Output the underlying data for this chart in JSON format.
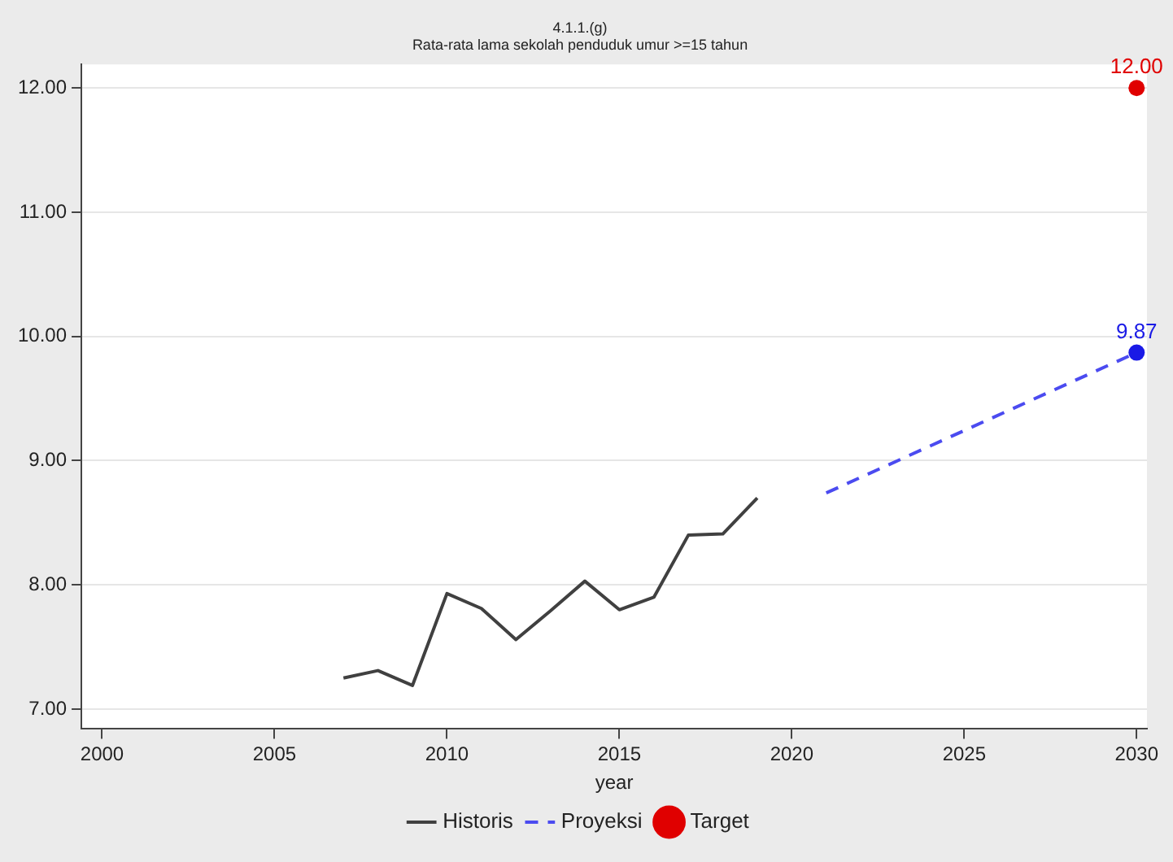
{
  "chart_data": {
    "type": "line",
    "title": "4.1.1.(g)",
    "subtitle": "Rata-rata lama sekolah penduduk umur >=15 tahun",
    "xlabel": "year",
    "xlim": [
      1999.4,
      2030.3
    ],
    "xticks": [
      2000,
      2005,
      2010,
      2015,
      2020,
      2025,
      2030
    ],
    "ylim": [
      6.84,
      12.19
    ],
    "yticks": [
      {
        "value": 7,
        "label": "7.00"
      },
      {
        "value": 8,
        "label": "8.00"
      },
      {
        "value": 9,
        "label": "9.00"
      },
      {
        "value": 10,
        "label": "10.00"
      },
      {
        "value": 11,
        "label": "11.00"
      },
      {
        "value": 12,
        "label": "12.00"
      }
    ],
    "grid": "y",
    "legend": "bottom",
    "series": [
      {
        "name": "Historis",
        "color": "#404040",
        "line_style": "solid",
        "marker": "none",
        "x": [
          2007,
          2008,
          2009,
          2010,
          2011,
          2012,
          2013,
          2014,
          2015,
          2016,
          2017,
          2018,
          2019
        ],
        "values": [
          7.25,
          7.31,
          7.19,
          7.93,
          7.81,
          7.56,
          7.79,
          8.03,
          7.8,
          7.9,
          8.4,
          8.41,
          8.7
        ]
      },
      {
        "name": "Proyeksi",
        "color": "#4b4bf0",
        "line_style": "dashed",
        "marker": "none",
        "x": [
          2021,
          2030
        ],
        "values": [
          8.74,
          9.87
        ]
      },
      {
        "type": "scatter",
        "color": "#1a1ae6",
        "marker": "circle",
        "x": [
          2030
        ],
        "values": [
          9.87
        ],
        "value_labels": [
          "9.87"
        ]
      },
      {
        "name": "Target",
        "type": "scatter",
        "color": "#e00000",
        "marker": "circle",
        "x": [
          2030
        ],
        "values": [
          12
        ],
        "value_labels": [
          "12.00"
        ]
      }
    ]
  }
}
